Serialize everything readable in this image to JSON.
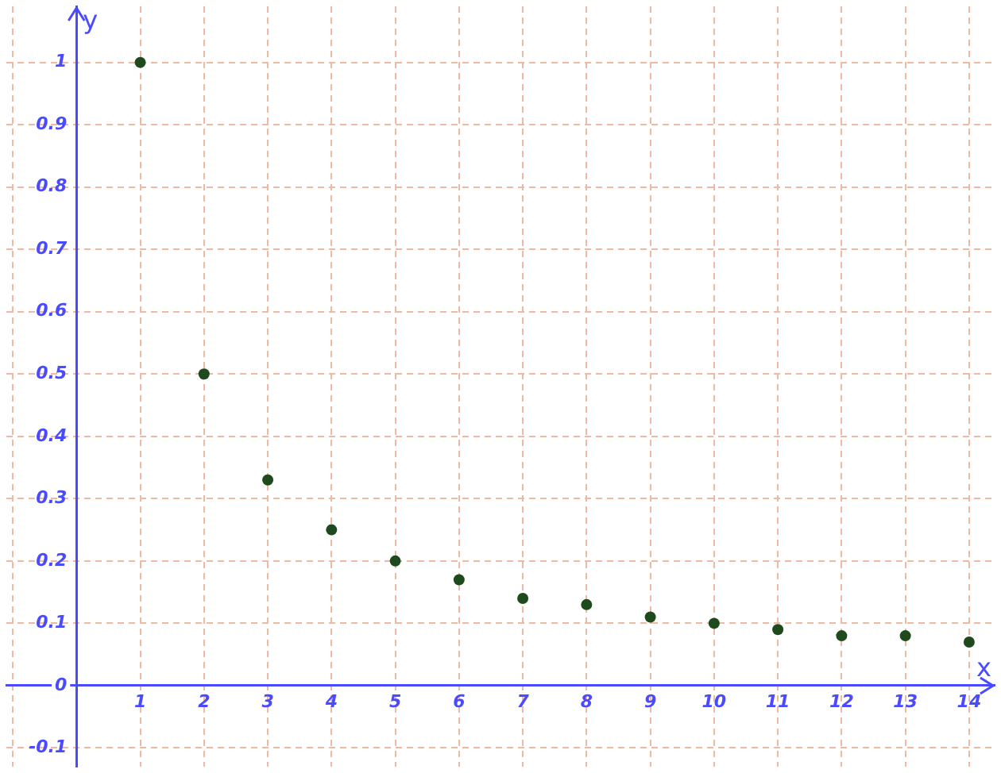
{
  "chart_data": {
    "type": "scatter",
    "xlabel": "x",
    "ylabel": "y",
    "x": [
      1,
      2,
      3,
      4,
      5,
      6,
      7,
      8,
      9,
      10,
      11,
      12,
      13,
      14
    ],
    "series": [
      {
        "color": "#1e4a1e",
        "values": [
          1,
          0.5,
          0.33,
          0.25,
          0.2,
          0.17,
          0.14,
          0.13,
          0.11,
          0.1,
          0.09,
          0.08,
          0.08,
          0.07
        ]
      }
    ],
    "xlim": [
      -1.1,
      14.4
    ],
    "ylim": [
      -0.13,
      1.09
    ],
    "xticks": [
      {
        "value": -1,
        "label": null
      },
      {
        "value": 0,
        "label": null
      },
      1,
      2,
      3,
      4,
      5,
      6,
      7,
      8,
      9,
      10,
      11,
      12,
      13,
      14
    ],
    "yticks": [
      -0.1,
      0,
      0.1,
      0.2,
      0.3,
      0.4,
      0.5,
      0.6,
      0.7,
      0.8,
      0.9,
      1
    ],
    "grid": true,
    "legend": false,
    "marker": "circle"
  }
}
